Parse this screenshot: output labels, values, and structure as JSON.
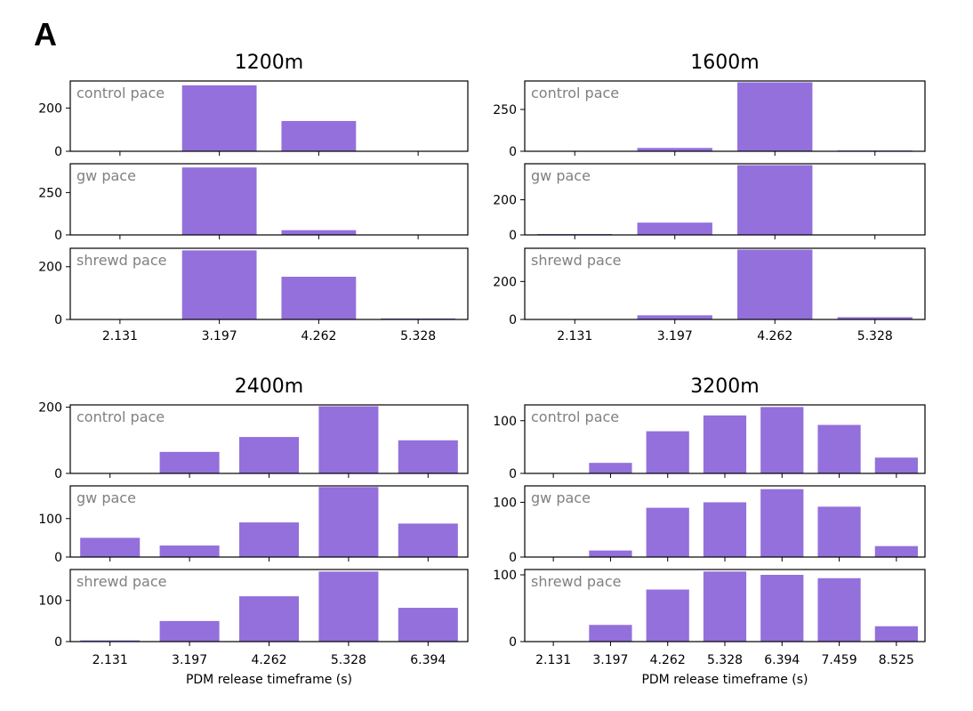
{
  "panel_label": "A",
  "colors": {
    "bar": "#9370db",
    "subplot_label": "#808080",
    "axis": "#000000"
  },
  "chart_data": [
    {
      "type": "bar",
      "title": "1200m",
      "xlabel": "",
      "categories": [
        "2.131",
        "3.197",
        "4.262",
        "5.328"
      ],
      "subplots": [
        {
          "name": "control pace",
          "label": "control pace",
          "values": [
            0,
            305,
            140,
            0
          ],
          "ylim": [
            0,
            325
          ],
          "yticks": [
            0,
            200
          ]
        },
        {
          "name": "gw pace",
          "label": "gw pace",
          "values": [
            0,
            398,
            28,
            0
          ],
          "ylim": [
            0,
            420
          ],
          "yticks": [
            0,
            250
          ]
        },
        {
          "name": "shrewd pace",
          "label": "shrewd pace",
          "values": [
            0,
            262,
            162,
            4
          ],
          "ylim": [
            0,
            270
          ],
          "yticks": [
            0,
            200
          ]
        }
      ]
    },
    {
      "type": "bar",
      "title": "1600m",
      "xlabel": "",
      "categories": [
        "2.131",
        "3.197",
        "4.262",
        "5.328"
      ],
      "subplots": [
        {
          "name": "control pace",
          "label": "control pace",
          "values": [
            0,
            20,
            412,
            5
          ],
          "ylim": [
            0,
            420
          ],
          "yticks": [
            0,
            250
          ]
        },
        {
          "name": "gw pace",
          "label": "gw pace",
          "values": [
            5,
            70,
            397,
            0
          ],
          "ylim": [
            0,
            405
          ],
          "yticks": [
            0,
            200
          ]
        },
        {
          "name": "shrewd pace",
          "label": "shrewd pace",
          "values": [
            0,
            22,
            368,
            12
          ],
          "ylim": [
            0,
            375
          ],
          "yticks": [
            0,
            200
          ]
        }
      ]
    },
    {
      "type": "bar",
      "title": "2400m",
      "xlabel": "PDM release timeframe (s)",
      "categories": [
        "2.131",
        "3.197",
        "4.262",
        "5.328",
        "6.394"
      ],
      "subplots": [
        {
          "name": "control pace",
          "label": "control pace",
          "values": [
            0,
            65,
            110,
            203,
            100
          ],
          "ylim": [
            0,
            207
          ],
          "yticks": [
            0,
            200
          ]
        },
        {
          "name": "gw pace",
          "label": "gw pace",
          "values": [
            50,
            30,
            90,
            182,
            87
          ],
          "ylim": [
            0,
            185
          ],
          "yticks": [
            0,
            100
          ]
        },
        {
          "name": "shrewd pace",
          "label": "shrewd pace",
          "values": [
            3,
            50,
            110,
            170,
            82
          ],
          "ylim": [
            0,
            175
          ],
          "yticks": [
            0,
            100
          ]
        }
      ]
    },
    {
      "type": "bar",
      "title": "3200m",
      "xlabel": "PDM release timeframe (s)",
      "categories": [
        "2.131",
        "3.197",
        "4.262",
        "5.328",
        "6.394",
        "7.459",
        "8.525"
      ],
      "subplots": [
        {
          "name": "control pace",
          "label": "control pace",
          "values": [
            0,
            20,
            80,
            110,
            126,
            92,
            30
          ],
          "ylim": [
            0,
            130
          ],
          "yticks": [
            0,
            100
          ]
        },
        {
          "name": "gw pace",
          "label": "gw pace",
          "values": [
            0,
            12,
            90,
            100,
            124,
            92,
            20
          ],
          "ylim": [
            0,
            130
          ],
          "yticks": [
            0,
            100
          ]
        },
        {
          "name": "shrewd pace",
          "label": "shrewd pace",
          "values": [
            0,
            25,
            78,
            105,
            100,
            95,
            23
          ],
          "ylim": [
            0,
            108
          ],
          "yticks": [
            0,
            100
          ]
        }
      ]
    }
  ]
}
